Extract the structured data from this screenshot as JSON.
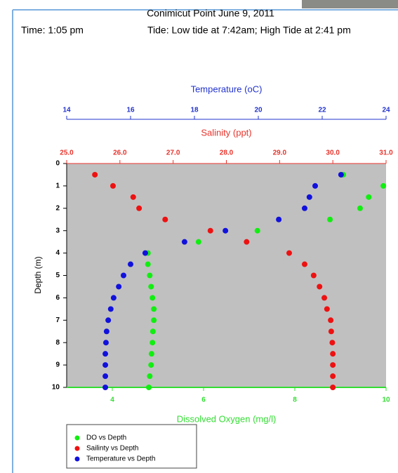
{
  "chart_data": {
    "type": "scatter",
    "title": "Conimicut Point  June 9, 2011",
    "subtitle_left": "Time:  1:05 pm",
    "subtitle_right": "Tide: Low tide at 7:42am; High Tide at 2:41 pm",
    "ylabel": "Depth (m)",
    "ylim": [
      0,
      10
    ],
    "y_inverted": true,
    "yticks": [
      0,
      1,
      2,
      3,
      4,
      5,
      6,
      7,
      8,
      9,
      10
    ],
    "y": [
      0.5,
      1,
      1.5,
      2,
      2.5,
      3,
      3.5,
      4,
      4.5,
      5,
      5.5,
      6,
      6.5,
      7,
      7.5,
      8,
      8.5,
      9,
      9.5,
      10
    ],
    "x_axes": [
      {
        "label": "Dissolved Oxygen (mg/l)",
        "color": "#33dd33",
        "lim": [
          3,
          10
        ],
        "ticks": [
          4,
          6,
          8,
          10
        ]
      },
      {
        "label": "Salinity (ppt)",
        "color": "#e8332b",
        "lim": [
          25,
          31
        ],
        "ticks": [
          {
            "value": 25,
            "label": "25.0"
          },
          {
            "value": 26,
            "label": "26.0"
          },
          {
            "value": 27,
            "label": "27.0"
          },
          {
            "value": 28,
            "label": "28.0"
          },
          {
            "value": 29,
            "label": "29.0"
          },
          {
            "value": 30,
            "label": "30.0"
          },
          {
            "value": 31,
            "label": "31.0"
          }
        ]
      },
      {
        "label": "Temperature (oC)",
        "color": "#2233cc",
        "lim": [
          14,
          24
        ],
        "ticks": [
          14,
          16,
          18,
          20,
          22,
          24
        ]
      }
    ],
    "series": [
      {
        "name": "DO vs Depth",
        "color": "#11ee11",
        "x_axis": 0,
        "values": [
          9.06,
          9.94,
          9.62,
          9.43,
          8.77,
          7.18,
          5.89,
          4.78,
          4.78,
          4.82,
          4.85,
          4.88,
          4.91,
          4.91,
          4.89,
          4.88,
          4.86,
          4.85,
          4.82,
          4.8
        ]
      },
      {
        "name": "Sailinty vs Depth",
        "color": "#ee1111",
        "x_axis": 1,
        "values": [
          25.53,
          25.87,
          26.25,
          26.36,
          26.85,
          27.7,
          28.38,
          29.18,
          29.47,
          29.64,
          29.75,
          29.84,
          29.89,
          29.96,
          29.97,
          29.99,
          30.0,
          30.0,
          30.0,
          30.0
        ]
      },
      {
        "name": "Temperature vs Depth",
        "color": "#1111dd",
        "x_axis": 2,
        "values": [
          22.59,
          21.78,
          21.6,
          21.45,
          20.64,
          18.97,
          17.69,
          16.46,
          16.0,
          15.78,
          15.63,
          15.47,
          15.38,
          15.3,
          15.25,
          15.23,
          15.21,
          15.21,
          15.21,
          15.21
        ]
      }
    ]
  }
}
